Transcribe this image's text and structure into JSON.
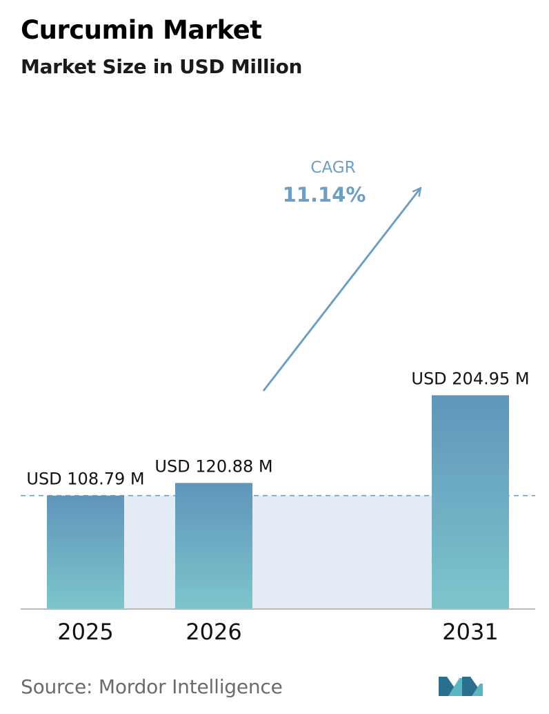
{
  "title": "Curcumin Market",
  "subtitle": "Market Size in USD Million",
  "source": "Source:  Mordor Intelligence",
  "colors": {
    "bar_top": "#5f95bb",
    "bar_bottom": "#7ec5cb",
    "shade": "#e3ecf4",
    "accent": "#6e9fc3",
    "axis": "#b9b9b9"
  },
  "chart_data": {
    "type": "bar",
    "title": "Curcumin Market",
    "subtitle": "Market Size in USD Million",
    "categories": [
      "2025",
      "2026",
      "2031"
    ],
    "values": [
      108.79,
      120.88,
      204.95
    ],
    "value_labels": [
      "USD 108.79 M",
      "USD 120.88 M",
      "USD 204.95 M"
    ],
    "unit": "USD Million",
    "baseline_reference": 108.79,
    "annotation": {
      "label": "CAGR",
      "value": "11.14%"
    },
    "xlabel": "",
    "ylabel": "",
    "grid": false,
    "legend": "none"
  }
}
